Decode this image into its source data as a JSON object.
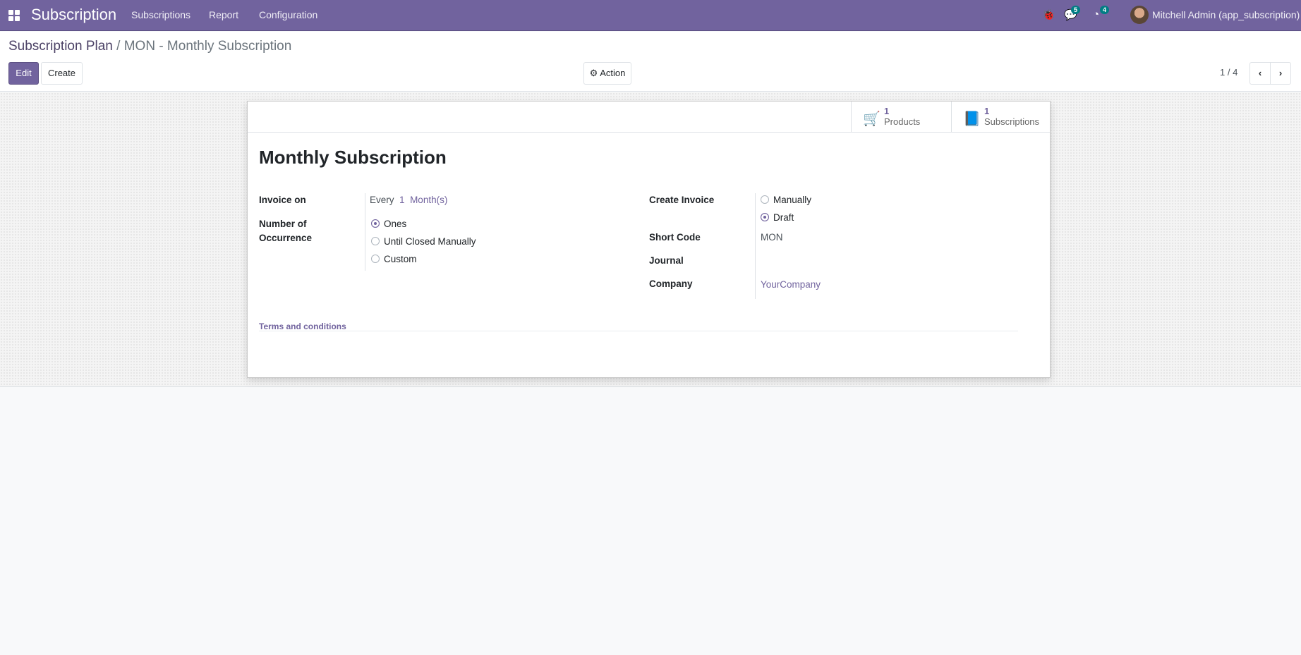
{
  "navbar": {
    "app_name": "Subscription",
    "menu": [
      "Subscriptions",
      "Report",
      "Configuration"
    ],
    "messages_count": "5",
    "activities_count": "4",
    "user": "Mitchell Admin (app_subscription)",
    "color": "#71639e"
  },
  "breadcrumb": {
    "parent": "Subscription Plan",
    "separator": "/",
    "current": "MON - Monthly Subscription"
  },
  "toolbar": {
    "edit": "Edit",
    "create": "Create",
    "action": "Action",
    "pager": "1 / 4"
  },
  "stat_buttons": [
    {
      "count": "1",
      "label": "Products",
      "icon": "cart-icon"
    },
    {
      "count": "1",
      "label": "Subscriptions",
      "icon": "book-icon"
    }
  ],
  "form": {
    "title": "Monthly Subscription",
    "invoice_on": {
      "label": "Invoice on",
      "prefix": "Every",
      "interval": "1",
      "unit": "Month(s)"
    },
    "occurrence": {
      "label": "Number of Occurrence",
      "options": [
        "Ones",
        "Until Closed Manually",
        "Custom"
      ],
      "selected": "Ones"
    },
    "create_invoice": {
      "label": "Create Invoice",
      "options": [
        "Manually",
        "Draft"
      ],
      "selected": "Draft"
    },
    "short_code": {
      "label": "Short Code",
      "value": "MON"
    },
    "journal": {
      "label": "Journal",
      "value": ""
    },
    "company": {
      "label": "Company",
      "value": "YourCompany"
    },
    "terms_label": "Terms and conditions"
  }
}
